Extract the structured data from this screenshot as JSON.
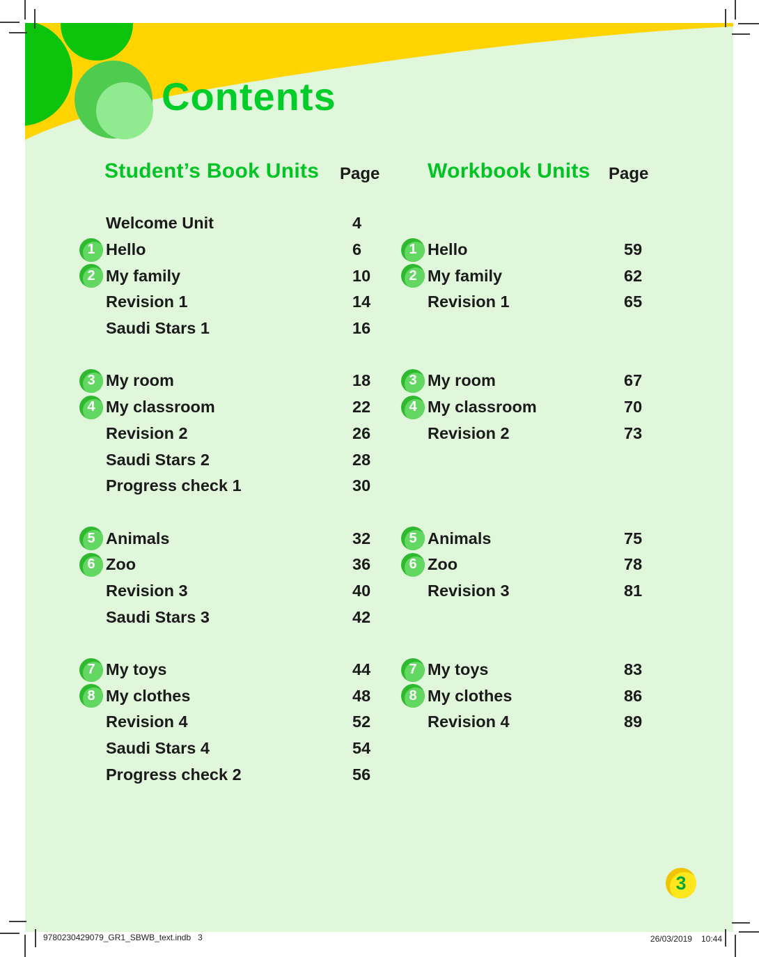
{
  "page": {
    "title": "Contents",
    "page_number": "3"
  },
  "columns": [
    {
      "heading": "Student’s Book Units",
      "page_label": "Page"
    },
    {
      "heading": "Workbook Units",
      "page_label": "Page"
    }
  ],
  "sections": [
    {
      "rows": [
        {
          "left": {
            "badge": "",
            "title": "Welcome Unit",
            "page": "4"
          },
          "right": null
        },
        {
          "left": {
            "badge": "1",
            "title": "Hello",
            "page": "6"
          },
          "right": {
            "badge": "1",
            "title": "Hello",
            "page": "59"
          }
        },
        {
          "left": {
            "badge": "2",
            "title": "My family",
            "page": "10"
          },
          "right": {
            "badge": "2",
            "title": "My family",
            "page": "62"
          }
        },
        {
          "left": {
            "badge": "",
            "title": "Revision 1",
            "page": "14"
          },
          "right": {
            "badge": "",
            "title": "Revision 1",
            "page": "65"
          }
        },
        {
          "left": {
            "badge": "",
            "title": "Saudi Stars 1",
            "page": "16"
          },
          "right": null
        }
      ]
    },
    {
      "rows": [
        {
          "left": {
            "badge": "3",
            "title": "My room",
            "page": "18"
          },
          "right": {
            "badge": "3",
            "title": "My room",
            "page": "67"
          }
        },
        {
          "left": {
            "badge": "4",
            "title": "My classroom",
            "page": "22"
          },
          "right": {
            "badge": "4",
            "title": "My classroom",
            "page": "70"
          }
        },
        {
          "left": {
            "badge": "",
            "title": "Revision 2",
            "page": "26"
          },
          "right": {
            "badge": "",
            "title": "Revision 2",
            "page": "73"
          }
        },
        {
          "left": {
            "badge": "",
            "title": "Saudi Stars 2",
            "page": "28"
          },
          "right": null
        },
        {
          "left": {
            "badge": "",
            "title": "Progress check 1",
            "page": "30"
          },
          "right": null
        }
      ]
    },
    {
      "rows": [
        {
          "left": {
            "badge": "5",
            "title": "Animals",
            "page": "32"
          },
          "right": {
            "badge": "5",
            "title": "Animals",
            "page": "75"
          }
        },
        {
          "left": {
            "badge": "6",
            "title": "Zoo",
            "page": "36"
          },
          "right": {
            "badge": "6",
            "title": "Zoo",
            "page": "78"
          }
        },
        {
          "left": {
            "badge": "",
            "title": "Revision 3",
            "page": "40"
          },
          "right": {
            "badge": "",
            "title": "Revision 3",
            "page": "81"
          }
        },
        {
          "left": {
            "badge": "",
            "title": "Saudi Stars 3",
            "page": "42"
          },
          "right": null
        }
      ]
    },
    {
      "rows": [
        {
          "left": {
            "badge": "7",
            "title": "My toys",
            "page": "44"
          },
          "right": {
            "badge": "7",
            "title": "My toys",
            "page": "83"
          }
        },
        {
          "left": {
            "badge": "8",
            "title": "My clothes",
            "page": "48"
          },
          "right": {
            "badge": "8",
            "title": "My clothes",
            "page": "86"
          }
        },
        {
          "left": {
            "badge": "",
            "title": "Revision 4",
            "page": "52"
          },
          "right": {
            "badge": "",
            "title": "Revision 4",
            "page": "89"
          }
        },
        {
          "left": {
            "badge": "",
            "title": "Saudi Stars 4",
            "page": "54"
          },
          "right": null
        },
        {
          "left": {
            "badge": "",
            "title": "Progress check 2",
            "page": "56"
          },
          "right": null
        }
      ]
    }
  ],
  "footer": {
    "left_text": "9780230429079_GR1_SBWB_text.indb   3",
    "date": "26/03/2019",
    "time": "10:44"
  },
  "colors": {
    "page_background": "#e1f7dc",
    "banner_yellow": "#ffd400",
    "circle_green_dark": "#0dc40d",
    "circle_green_mid": "#4fcc4f",
    "circle_green_light": "#90ea90",
    "title_green": "#00cd28",
    "heading_green": "#00c424",
    "badge_green": "#2fb92f",
    "badge_green_light": "#62d862",
    "text_black": "#1b1b1b",
    "page_badge_yellow": "#f0c400",
    "page_badge_yellow_light": "#ffe71e",
    "page_badge_number_green": "#07a83a"
  }
}
